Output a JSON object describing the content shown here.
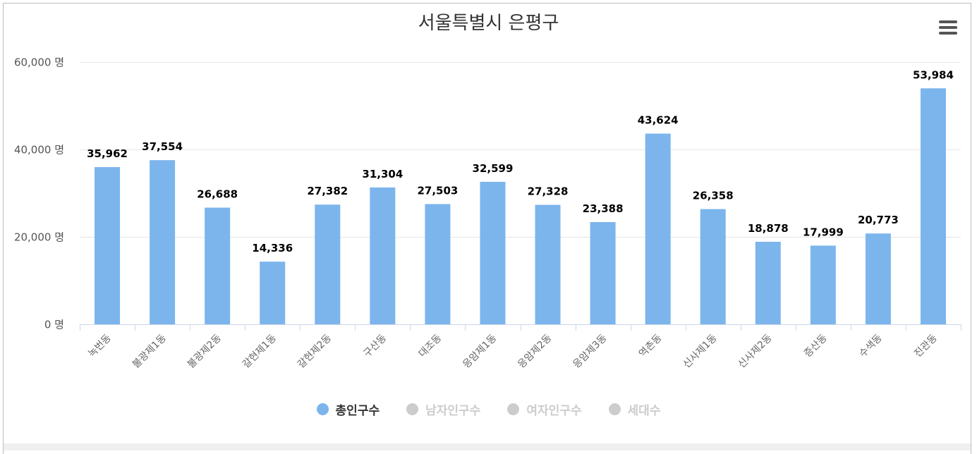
{
  "chart_data": {
    "type": "bar",
    "title": "서울특별시 은평구",
    "categories": [
      "녹번동",
      "불광제1동",
      "불광제2동",
      "갈현제1동",
      "갈현제2동",
      "구산동",
      "대조동",
      "응암제1동",
      "응암제2동",
      "응암제3동",
      "역촌동",
      "신사제1동",
      "신사제2동",
      "증산동",
      "수색동",
      "진관동"
    ],
    "series": [
      {
        "name": "총인구수",
        "visible": true,
        "values": [
          35962,
          37554,
          26688,
          14336,
          27382,
          31304,
          27503,
          32599,
          27328,
          23388,
          43624,
          26358,
          18878,
          17999,
          20773,
          53984
        ],
        "data_labels": [
          "35,962",
          "37,554",
          "26,688",
          "14,336",
          "27,382",
          "31,304",
          "27,503",
          "32,599",
          "27,328",
          "23,388",
          "43,624",
          "26,358",
          "18,878",
          "17,999",
          "20,773",
          "53,984"
        ]
      },
      {
        "name": "남자인구수",
        "visible": false
      },
      {
        "name": "여자인구수",
        "visible": false
      },
      {
        "name": "세대수",
        "visible": false
      }
    ],
    "ylim": [
      0,
      60000
    ],
    "y_ticks": [
      0,
      20000,
      40000,
      60000
    ],
    "y_tick_labels": [
      "0 명",
      "20,000 명",
      "40,000 명",
      "60,000 명"
    ],
    "grid": true,
    "legend_position": "bottom"
  },
  "colors": {
    "bar": "#7cb5ec",
    "grid": "#e6e6e6",
    "axis": "#ccd6eb",
    "legend_active": "#333333",
    "legend_inactive": "#cccccc",
    "text": "#333333"
  },
  "toolbar": {
    "menu_icon": "hamburger-menu-icon"
  }
}
